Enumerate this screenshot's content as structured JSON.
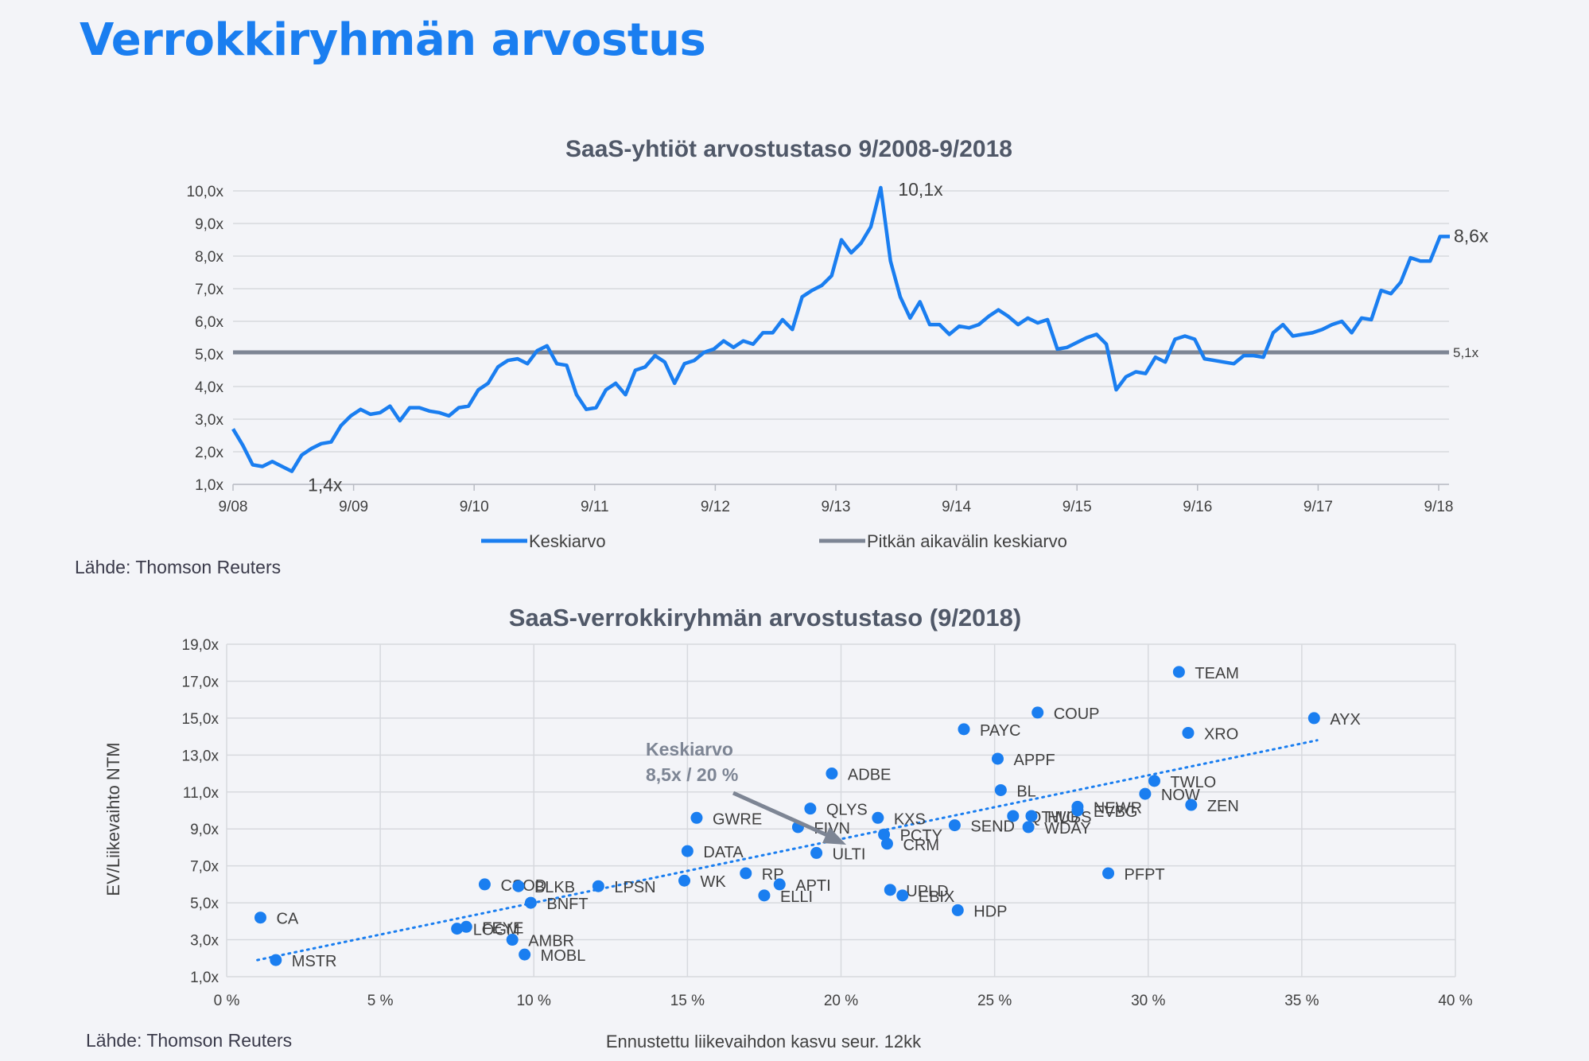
{
  "page": {
    "title": "Verrokkiryhmän arvostus",
    "source_top": "Lähde: Thomson Reuters",
    "source_bottom": "Lähde: Thomson Reuters"
  },
  "colors": {
    "accent": "#1a7ef0",
    "line": "#1a7ef0",
    "longterm": "#7d8594",
    "grid": "#d7d9de",
    "text": "#404040",
    "annotation": "#7d8594"
  },
  "chart_data": [
    {
      "type": "line",
      "title": "SaaS-yhtiöt arvostustaso 9/2008-9/2018",
      "ylim": [
        1,
        10
      ],
      "y_ticks": [
        "1,0x",
        "2,0x",
        "3,0x",
        "4,0x",
        "5,0x",
        "6,0x",
        "7,0x",
        "8,0x",
        "9,0x",
        "10,0x"
      ],
      "x_ticks": [
        "9/08",
        "9/09",
        "9/10",
        "9/11",
        "9/12",
        "9/13",
        "9/14",
        "9/15",
        "9/16",
        "9/17",
        "9/18"
      ],
      "series": [
        {
          "name": "Keskiarvo",
          "values": [
            2.7,
            2.2,
            1.6,
            1.55,
            1.7,
            1.55,
            1.4,
            1.9,
            2.1,
            2.25,
            2.3,
            2.8,
            3.1,
            3.3,
            3.15,
            3.2,
            3.4,
            2.95,
            3.35,
            3.35,
            3.25,
            3.2,
            3.1,
            3.35,
            3.4,
            3.9,
            4.1,
            4.6,
            4.8,
            4.85,
            4.7,
            5.1,
            5.25,
            4.7,
            4.65,
            3.75,
            3.3,
            3.35,
            3.9,
            4.1,
            3.75,
            4.5,
            4.6,
            4.95,
            4.75,
            4.1,
            4.7,
            4.8,
            5.05,
            5.15,
            5.4,
            5.2,
            5.4,
            5.3,
            5.65,
            5.65,
            6.05,
            5.75,
            6.75,
            6.95,
            7.1,
            7.4,
            8.5,
            8.1,
            8.4,
            8.9,
            10.1,
            7.85,
            6.75,
            6.1,
            6.6,
            5.9,
            5.9,
            5.6,
            5.85,
            5.8,
            5.9,
            6.15,
            6.35,
            6.15,
            5.9,
            6.1,
            5.95,
            6.05,
            5.15,
            5.2,
            5.35,
            5.5,
            5.6,
            5.3,
            3.9,
            4.3,
            4.45,
            4.4,
            4.9,
            4.75,
            5.45,
            5.55,
            5.45,
            4.85,
            4.8,
            4.75,
            4.7,
            4.95,
            4.95,
            4.9,
            5.65,
            5.9,
            5.55,
            5.6,
            5.65,
            5.75,
            5.9,
            6.0,
            5.65,
            6.1,
            6.05,
            6.95,
            6.85,
            7.2,
            7.95,
            7.85,
            7.85,
            8.6,
            8.6
          ]
        },
        {
          "name": "Pitkän aikavälin keskiarvo",
          "values": [
            5.05,
            5.05
          ]
        }
      ],
      "annotations": {
        "peak": "10,1x",
        "low": "1,4x",
        "last": "8,6x",
        "longterm": "5,1x"
      },
      "legend": [
        "Keskiarvo",
        "Pitkän aikavälin keskiarvo"
      ]
    },
    {
      "type": "scatter",
      "title": "SaaS-verrokkiryhmän arvostustaso (9/2018)",
      "xlabel": "Ennustettu liikevaihdon kasvu seur. 12kk",
      "ylabel": "EV/Liikevaihto NTM",
      "xlim": [
        0,
        40
      ],
      "ylim": [
        1,
        19
      ],
      "x_ticks": [
        "0 %",
        "5 %",
        "10 %",
        "15 %",
        "20 %",
        "25 %",
        "30 %",
        "35 %",
        "40 %"
      ],
      "y_ticks": [
        "1,0x",
        "3,0x",
        "5,0x",
        "7,0x",
        "9,0x",
        "11,0x",
        "13,0x",
        "15,0x",
        "17,0x",
        "19,0x"
      ],
      "trendline": {
        "x": [
          1.0,
          35.5
        ],
        "y": [
          1.9,
          13.8
        ]
      },
      "mean_label": [
        "Keskiarvo",
        "8,5x / 20 %"
      ],
      "points": [
        {
          "label": "CA",
          "x": 1.1,
          "y": 4.2
        },
        {
          "label": "MSTR",
          "x": 1.6,
          "y": 1.9
        },
        {
          "label": "LOGM",
          "x": 7.5,
          "y": 3.6
        },
        {
          "label": "FEYE",
          "x": 7.8,
          "y": 3.7
        },
        {
          "label": "CSOD",
          "x": 8.4,
          "y": 6.0
        },
        {
          "label": "BLKB",
          "x": 9.5,
          "y": 5.9
        },
        {
          "label": "BNFT",
          "x": 9.9,
          "y": 5.0
        },
        {
          "label": "AMBR",
          "x": 9.3,
          "y": 3.0
        },
        {
          "label": "MOBL",
          "x": 9.7,
          "y": 2.2
        },
        {
          "label": "LPSN",
          "x": 12.1,
          "y": 5.9
        },
        {
          "label": "WK",
          "x": 14.9,
          "y": 6.2
        },
        {
          "label": "DATA",
          "x": 15.0,
          "y": 7.8
        },
        {
          "label": "GWRE",
          "x": 15.3,
          "y": 9.6
        },
        {
          "label": "RP",
          "x": 16.9,
          "y": 6.6
        },
        {
          "label": "APTI",
          "x": 18.0,
          "y": 6.0
        },
        {
          "label": "ELLI",
          "x": 17.5,
          "y": 5.4
        },
        {
          "label": "FIVN",
          "x": 18.6,
          "y": 9.1
        },
        {
          "label": "QLYS",
          "x": 19.0,
          "y": 10.1
        },
        {
          "label": "ULTI",
          "x": 19.2,
          "y": 7.7
        },
        {
          "label": "ADBE",
          "x": 19.7,
          "y": 12.0
        },
        {
          "label": "KXS",
          "x": 21.2,
          "y": 9.6
        },
        {
          "label": "PCTY",
          "x": 21.4,
          "y": 8.7
        },
        {
          "label": "CRM",
          "x": 21.5,
          "y": 8.2
        },
        {
          "label": "UPLD",
          "x": 21.6,
          "y": 5.7
        },
        {
          "label": "EBIX",
          "x": 22.0,
          "y": 5.4
        },
        {
          "label": "HDP",
          "x": 23.8,
          "y": 4.6
        },
        {
          "label": "SEND",
          "x": 23.7,
          "y": 9.2
        },
        {
          "label": "PAYC",
          "x": 24.0,
          "y": 14.4
        },
        {
          "label": "APPF",
          "x": 25.1,
          "y": 12.8
        },
        {
          "label": "BL",
          "x": 25.2,
          "y": 11.1
        },
        {
          "label": "QTWO",
          "x": 25.6,
          "y": 9.7
        },
        {
          "label": "HUBS",
          "x": 26.2,
          "y": 9.7
        },
        {
          "label": "WDAY",
          "x": 26.1,
          "y": 9.1
        },
        {
          "label": "COUP",
          "x": 26.4,
          "y": 15.3
        },
        {
          "label": "NEWR",
          "x": 27.7,
          "y": 10.2
        },
        {
          "label": "EVBG",
          "x": 27.7,
          "y": 10.0
        },
        {
          "label": "PFPT",
          "x": 28.7,
          "y": 6.6
        },
        {
          "label": "NOW",
          "x": 29.9,
          "y": 10.9
        },
        {
          "label": "TWLO",
          "x": 30.2,
          "y": 11.6
        },
        {
          "label": "TEAM",
          "x": 31.0,
          "y": 17.5
        },
        {
          "label": "XRO",
          "x": 31.3,
          "y": 14.2
        },
        {
          "label": "ZEN",
          "x": 31.4,
          "y": 10.3
        },
        {
          "label": "AYX",
          "x": 35.4,
          "y": 15.0
        }
      ]
    }
  ]
}
